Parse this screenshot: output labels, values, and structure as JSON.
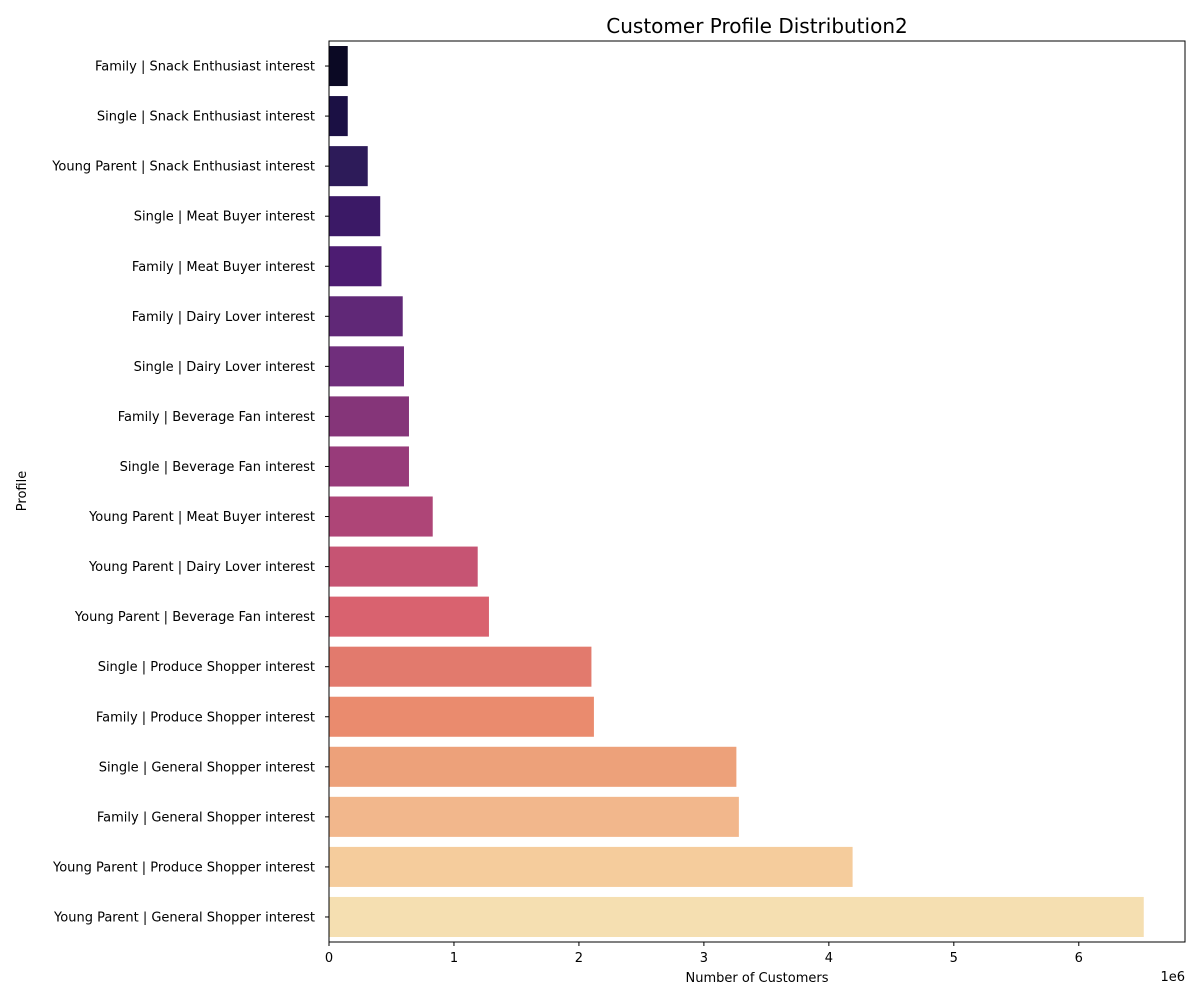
{
  "chart_data": {
    "type": "bar",
    "orientation": "horizontal",
    "title": "Customer Profile Distribution2",
    "xlabel": "Number of Customers",
    "ylabel": "Profile",
    "x_scale_label": "1e6",
    "xlim": [
      0,
      6.85
    ],
    "xticks": [
      "0",
      "1",
      "2",
      "3",
      "4",
      "5",
      "6"
    ],
    "grid": false,
    "legend": "none",
    "palette": "magma",
    "categories": [
      "Family | Snack Enthusiast interest",
      "Single | Snack Enthusiast interest",
      "Young Parent | Snack Enthusiast interest",
      "Single | Meat Buyer interest",
      "Family | Meat Buyer interest",
      "Family | Dairy Lover interest",
      "Single | Dairy Lover interest",
      "Family | Beverage Fan interest",
      "Single | Beverage Fan interest",
      "Young Parent | Meat Buyer interest",
      "Young Parent | Dairy Lover interest",
      "Young Parent | Beverage Fan interest",
      "Single | Produce Shopper interest",
      "Family | Produce Shopper interest",
      "Single | General Shopper interest",
      "Family | General Shopper interest",
      "Young Parent | Produce Shopper interest",
      "Young Parent | General Shopper interest"
    ],
    "values": [
      0.15,
      0.15,
      0.31,
      0.41,
      0.42,
      0.59,
      0.6,
      0.64,
      0.64,
      0.83,
      1.19,
      1.28,
      2.1,
      2.12,
      3.26,
      3.28,
      4.19,
      6.52
    ],
    "colors": [
      "#0b0924",
      "#1b1044",
      "#2d1b59",
      "#3b1966",
      "#4d1c72",
      "#602877",
      "#702e7c",
      "#853579",
      "#983b7a",
      "#ae4577",
      "#c65473",
      "#d9626f",
      "#e27a6d",
      "#ea8b6e",
      "#eda17a",
      "#f2b78c",
      "#f5cc9c",
      "#f5dfb1"
    ]
  }
}
